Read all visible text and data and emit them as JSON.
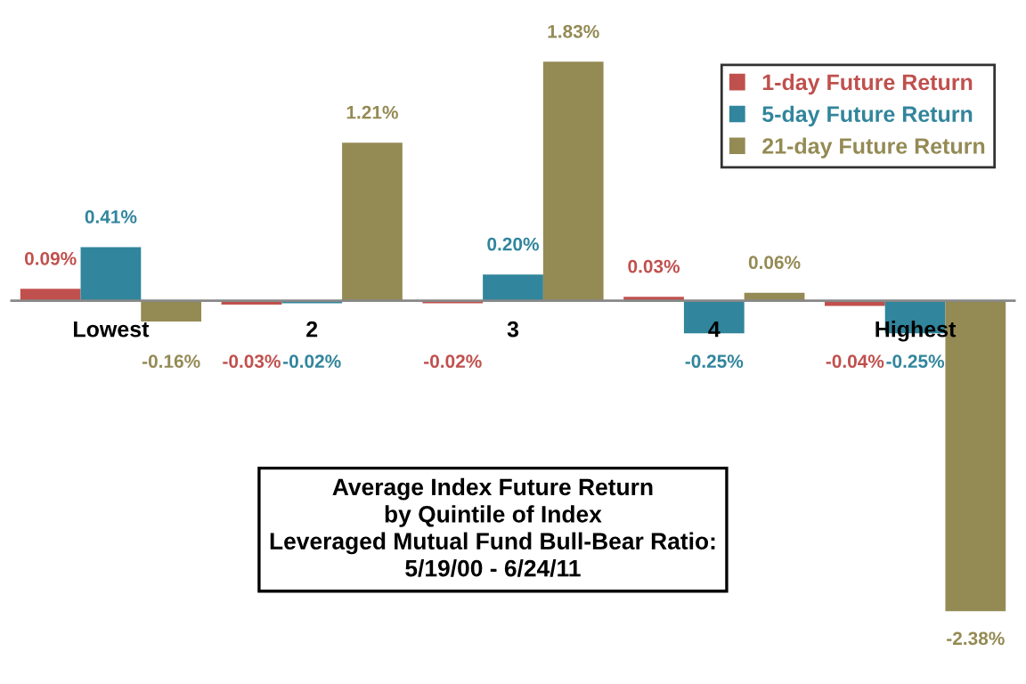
{
  "chart_data": {
    "type": "bar",
    "title": "Average Index Future Return\nby Quintile of Index\nLeveraged Mutual Fund Bull-Bear Ratio:\n5/19/00 - 6/24/11",
    "categories": [
      "Lowest",
      "2",
      "3",
      "4",
      "Highest"
    ],
    "series": [
      {
        "name": "1-day Future Return",
        "color": "#c0504d",
        "values": [
          0.09,
          -0.03,
          -0.02,
          0.03,
          -0.04
        ],
        "value_labels": [
          "0.09%",
          "-0.03%",
          "-0.02%",
          "0.03%",
          "-0.04%"
        ]
      },
      {
        "name": "5-day Future Return",
        "color": "#31859c",
        "values": [
          0.41,
          -0.02,
          0.2,
          -0.25,
          -0.25
        ],
        "value_labels": [
          "0.41%",
          "-0.02%",
          "0.20%",
          "-0.25%",
          "-0.25%"
        ]
      },
      {
        "name": "21-day Future Return",
        "color": "#948a54",
        "values": [
          -0.16,
          1.21,
          1.83,
          0.06,
          -2.38
        ],
        "value_labels": [
          "-0.16%",
          "1.21%",
          "1.83%",
          "0.06%",
          "-2.38%"
        ]
      }
    ],
    "tick_labels": "x",
    "legend": "top right"
  }
}
